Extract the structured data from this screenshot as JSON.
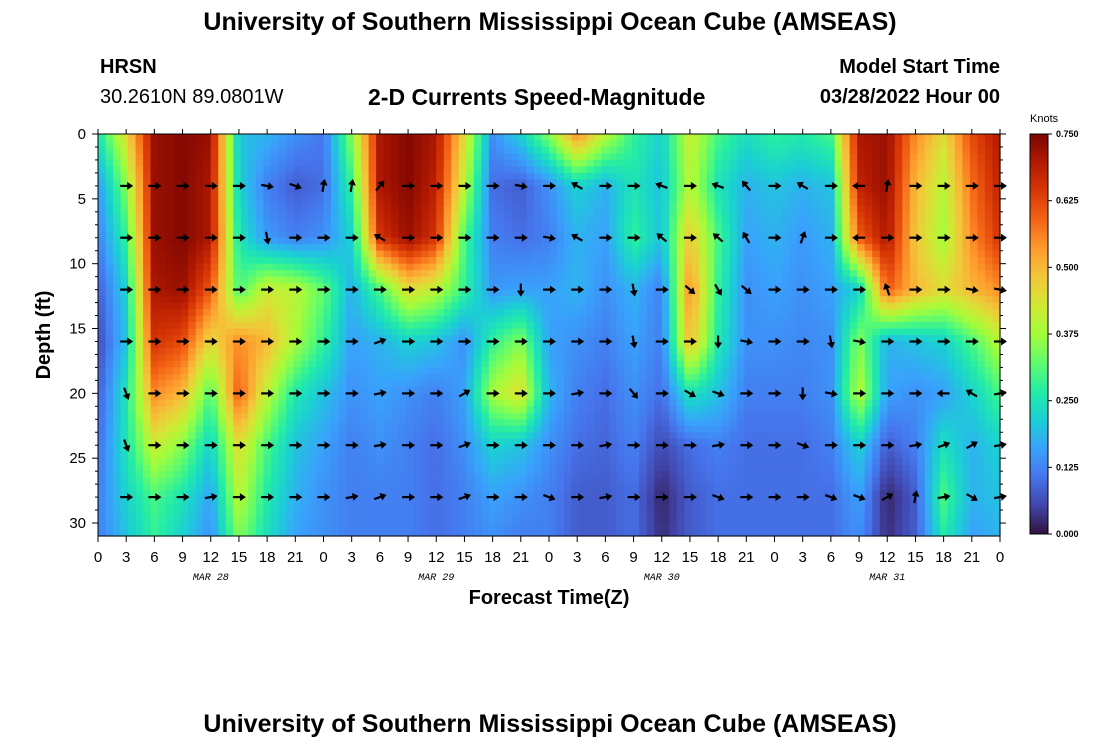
{
  "header": {
    "title": "University of Southern Mississippi Ocean Cube (AMSEAS)",
    "station": "HRSN",
    "coords": "30.2610N  89.0801W",
    "plot_title": "2-D Currents Speed-Magnitude",
    "model_start_label": "Model Start Time",
    "model_start_value": "03/28/2022 Hour 00"
  },
  "footer": {
    "title": "University of Southern Mississippi Ocean Cube (AMSEAS)"
  },
  "colors": {
    "ramp": [
      "#30123b",
      "#4145ab",
      "#4675ed",
      "#39a2fc",
      "#1bcfd4",
      "#24eca6",
      "#61fc6c",
      "#a4fc3b",
      "#d1e834",
      "#f3c63a",
      "#fe9b2d",
      "#f36315",
      "#d93806",
      "#b11901",
      "#7a0402"
    ],
    "arrow": "#000000"
  },
  "chart_data": {
    "type": "heatmap",
    "title": "2-D Currents Speed-Magnitude",
    "xlabel": "Forecast Time(Z)",
    "ylabel": "Depth (ft)",
    "x_ticks": [
      "0",
      "3",
      "6",
      "9",
      "12",
      "15",
      "18",
      "21",
      "0",
      "3",
      "6",
      "9",
      "12",
      "15",
      "18",
      "21",
      "0",
      "3",
      "6",
      "9",
      "12",
      "15",
      "18",
      "21",
      "0",
      "3",
      "6",
      "9",
      "12",
      "15",
      "18",
      "21",
      "0"
    ],
    "x_range_hours": [
      0,
      96
    ],
    "day_labels": [
      {
        "label": "MAR 28",
        "hour": 12
      },
      {
        "label": "MAR 29",
        "hour": 36
      },
      {
        "label": "MAR 30",
        "hour": 60
      },
      {
        "label": "MAR 31",
        "hour": 84
      }
    ],
    "y_ticks": [
      0,
      5,
      10,
      15,
      20,
      25,
      30
    ],
    "ylim": [
      0,
      31
    ],
    "colorbar": {
      "label": "Knots",
      "ticks": [
        "0.750",
        "0.625",
        "0.500",
        "0.375",
        "0.250",
        "0.125",
        "0.000"
      ],
      "range": [
        0,
        0.75
      ]
    },
    "hours": [
      0,
      3,
      6,
      9,
      12,
      15,
      18,
      21,
      24,
      27,
      30,
      33,
      36,
      39,
      42,
      45,
      48,
      51,
      54,
      57,
      60,
      63,
      66,
      69,
      72,
      75,
      78,
      81,
      84,
      87,
      90,
      93,
      96
    ],
    "depths": [
      0,
      4,
      8,
      12,
      16,
      20,
      24,
      28,
      31
    ],
    "speed_knots": [
      [
        0.25,
        0.45,
        0.72,
        0.74,
        0.72,
        0.2,
        0.18,
        0.14,
        0.11,
        0.35,
        0.7,
        0.74,
        0.7,
        0.45,
        0.14,
        0.22,
        0.35,
        0.55,
        0.4,
        0.28,
        0.22,
        0.42,
        0.3,
        0.24,
        0.28,
        0.26,
        0.3,
        0.7,
        0.72,
        0.55,
        0.45,
        0.62,
        0.7
      ],
      [
        0.15,
        0.35,
        0.72,
        0.74,
        0.7,
        0.22,
        0.12,
        0.08,
        0.1,
        0.28,
        0.7,
        0.74,
        0.68,
        0.4,
        0.1,
        0.08,
        0.14,
        0.22,
        0.18,
        0.25,
        0.2,
        0.4,
        0.25,
        0.18,
        0.2,
        0.18,
        0.2,
        0.68,
        0.72,
        0.5,
        0.4,
        0.58,
        0.68
      ],
      [
        0.12,
        0.28,
        0.72,
        0.74,
        0.7,
        0.25,
        0.15,
        0.12,
        0.14,
        0.22,
        0.65,
        0.72,
        0.65,
        0.3,
        0.12,
        0.1,
        0.12,
        0.18,
        0.16,
        0.28,
        0.2,
        0.48,
        0.3,
        0.16,
        0.18,
        0.15,
        0.18,
        0.6,
        0.7,
        0.48,
        0.38,
        0.55,
        0.65
      ],
      [
        0.08,
        0.22,
        0.7,
        0.72,
        0.6,
        0.3,
        0.42,
        0.4,
        0.32,
        0.18,
        0.3,
        0.45,
        0.4,
        0.28,
        0.15,
        0.16,
        0.16,
        0.18,
        0.14,
        0.18,
        0.12,
        0.55,
        0.28,
        0.14,
        0.16,
        0.14,
        0.16,
        0.22,
        0.6,
        0.5,
        0.45,
        0.5,
        0.55
      ],
      [
        0.06,
        0.2,
        0.65,
        0.62,
        0.45,
        0.55,
        0.5,
        0.38,
        0.28,
        0.16,
        0.18,
        0.22,
        0.2,
        0.14,
        0.28,
        0.35,
        0.16,
        0.14,
        0.12,
        0.16,
        0.12,
        0.5,
        0.26,
        0.14,
        0.14,
        0.13,
        0.14,
        0.35,
        0.18,
        0.2,
        0.22,
        0.3,
        0.4
      ],
      [
        0.08,
        0.25,
        0.55,
        0.5,
        0.3,
        0.6,
        0.4,
        0.26,
        0.2,
        0.14,
        0.16,
        0.14,
        0.12,
        0.16,
        0.38,
        0.45,
        0.18,
        0.12,
        0.1,
        0.14,
        0.1,
        0.25,
        0.2,
        0.12,
        0.12,
        0.12,
        0.14,
        0.4,
        0.16,
        0.14,
        0.16,
        0.22,
        0.3
      ],
      [
        0.1,
        0.25,
        0.42,
        0.35,
        0.22,
        0.45,
        0.3,
        0.2,
        0.16,
        0.12,
        0.14,
        0.12,
        0.1,
        0.14,
        0.22,
        0.2,
        0.14,
        0.1,
        0.09,
        0.12,
        0.06,
        0.1,
        0.12,
        0.1,
        0.1,
        0.1,
        0.12,
        0.22,
        0.08,
        0.12,
        0.24,
        0.18,
        0.22
      ],
      [
        0.12,
        0.22,
        0.3,
        0.25,
        0.16,
        0.4,
        0.26,
        0.18,
        0.14,
        0.12,
        0.12,
        0.12,
        0.1,
        0.12,
        0.16,
        0.14,
        0.12,
        0.08,
        0.08,
        0.1,
        0.02,
        0.08,
        0.1,
        0.1,
        0.1,
        0.1,
        0.1,
        0.16,
        0.02,
        0.08,
        0.3,
        0.18,
        0.2
      ],
      [
        0.12,
        0.2,
        0.28,
        0.22,
        0.14,
        0.35,
        0.24,
        0.16,
        0.14,
        0.12,
        0.12,
        0.12,
        0.1,
        0.12,
        0.14,
        0.12,
        0.12,
        0.08,
        0.08,
        0.1,
        0.03,
        0.08,
        0.1,
        0.1,
        0.1,
        0.1,
        0.1,
        0.14,
        0.03,
        0.08,
        0.26,
        0.16,
        0.18
      ]
    ],
    "vector_depths": [
      4,
      8,
      12,
      16,
      20,
      24,
      28
    ],
    "vector_hours": [
      3,
      6,
      9,
      12,
      15,
      18,
      21,
      24,
      27,
      30,
      33,
      36,
      39,
      42,
      45,
      48,
      51,
      54,
      57,
      60,
      63,
      66,
      69,
      72,
      75,
      78,
      81,
      84,
      87,
      90,
      93,
      96
    ],
    "vector_dir_deg": [
      [
        90,
        90,
        90,
        90,
        90,
        100,
        110,
        10,
        10,
        40,
        90,
        90,
        90,
        90,
        100,
        90,
        300,
        90,
        90,
        290,
        90,
        290,
        320,
        90,
        300,
        90,
        270,
        10,
        90,
        90,
        90,
        90
      ],
      [
        90,
        90,
        90,
        90,
        90,
        170,
        90,
        90,
        90,
        300,
        90,
        90,
        90,
        90,
        90,
        100,
        300,
        90,
        90,
        310,
        90,
        310,
        330,
        90,
        20,
        90,
        270,
        90,
        90,
        90,
        90,
        90
      ],
      [
        90,
        90,
        90,
        90,
        90,
        90,
        90,
        90,
        90,
        90,
        90,
        90,
        90,
        90,
        180,
        90,
        90,
        90,
        170,
        90,
        130,
        150,
        130,
        90,
        90,
        90,
        90,
        340,
        90,
        90,
        100,
        100
      ],
      [
        90,
        90,
        90,
        90,
        90,
        90,
        90,
        90,
        90,
        70,
        90,
        90,
        90,
        90,
        90,
        90,
        90,
        90,
        170,
        90,
        90,
        180,
        100,
        90,
        90,
        170,
        100,
        90,
        90,
        90,
        90,
        90
      ],
      [
        160,
        90,
        90,
        90,
        90,
        90,
        90,
        90,
        90,
        80,
        90,
        90,
        60,
        90,
        90,
        90,
        80,
        90,
        140,
        90,
        120,
        110,
        90,
        90,
        180,
        100,
        90,
        90,
        90,
        270,
        300,
        80
      ],
      [
        160,
        90,
        90,
        90,
        90,
        90,
        90,
        90,
        90,
        80,
        90,
        90,
        70,
        90,
        90,
        90,
        90,
        80,
        90,
        90,
        90,
        80,
        90,
        90,
        110,
        90,
        90,
        90,
        80,
        70,
        60,
        80
      ],
      [
        90,
        90,
        90,
        80,
        90,
        90,
        90,
        90,
        80,
        70,
        90,
        90,
        70,
        90,
        90,
        110,
        90,
        80,
        90,
        90,
        90,
        110,
        90,
        90,
        90,
        110,
        110,
        60,
        10,
        80,
        120,
        80
      ]
    ]
  }
}
